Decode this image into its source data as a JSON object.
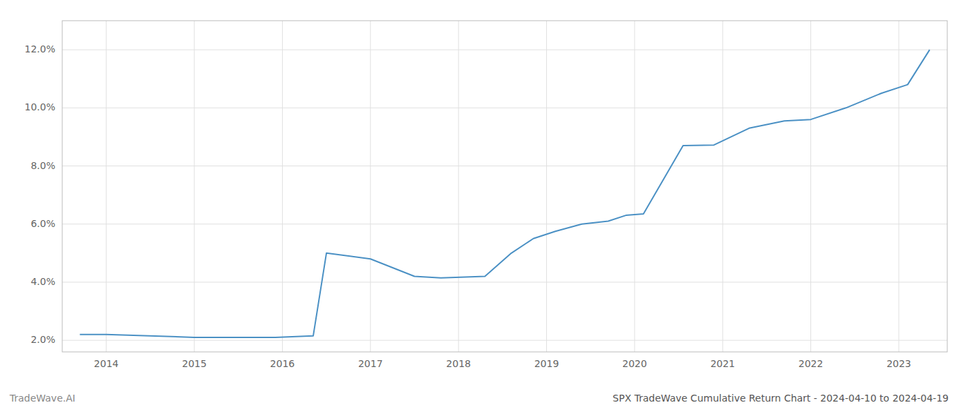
{
  "chart_data": {
    "type": "line",
    "title": "SPX TradeWave Cumulative Return Chart - 2024-04-10 to 2024-04-19",
    "annotations": [
      "TradeWave.AI"
    ],
    "x": [
      2013.7,
      2014.0,
      2015.0,
      2015.92,
      2016.35,
      2016.5,
      2017.0,
      2017.5,
      2017.8,
      2018.3,
      2018.6,
      2018.85,
      2019.1,
      2019.4,
      2019.7,
      2019.9,
      2020.1,
      2020.55,
      2020.9,
      2021.3,
      2021.7,
      2022.0,
      2022.4,
      2022.8,
      2023.1,
      2023.35
    ],
    "values": [
      2.2,
      2.2,
      2.1,
      2.1,
      2.15,
      5.0,
      4.8,
      4.2,
      4.15,
      4.2,
      5.0,
      5.5,
      5.75,
      6.0,
      6.1,
      6.3,
      6.35,
      8.7,
      8.72,
      9.3,
      9.55,
      9.6,
      10.0,
      10.5,
      10.8,
      12.0
    ],
    "color": "#4a90c4",
    "xlim": [
      2013.5,
      2023.55
    ],
    "xticks": [
      2014,
      2015,
      2016,
      2017,
      2018,
      2019,
      2020,
      2021,
      2022,
      2023
    ],
    "ylim": [
      1.6,
      13.0
    ],
    "yticks": [
      {
        "value": 2.0,
        "label": "2.0%"
      },
      {
        "value": 4.0,
        "label": "4.0%"
      },
      {
        "value": 6.0,
        "label": "6.0%"
      },
      {
        "value": 8.0,
        "label": "8.0%"
      },
      {
        "value": 10.0,
        "label": "10.0%"
      },
      {
        "value": 12.0,
        "label": "12.0%"
      }
    ],
    "grid": true
  }
}
